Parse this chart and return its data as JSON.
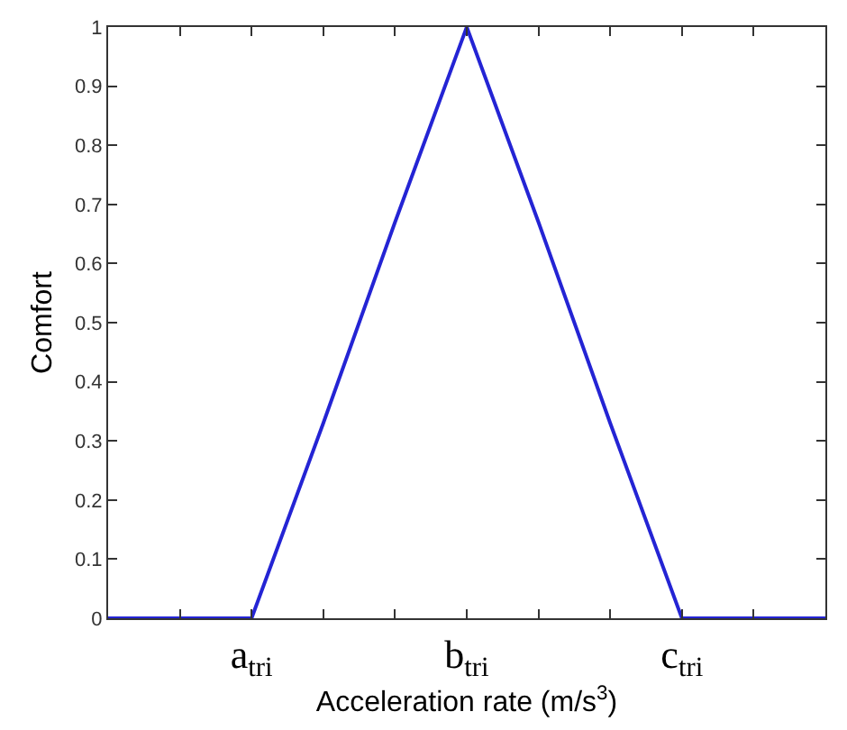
{
  "chart_data": {
    "type": "line",
    "xlabel": "Acceleration rate (m/s$^{3}$)",
    "ylabel": "Comfort",
    "categories": [
      null,
      null,
      "a$_{tri}$",
      null,
      null,
      "b$_{tri}$",
      null,
      null,
      "c$_{tri}$",
      null,
      null
    ],
    "series": [
      {
        "color": "#2424d4",
        "values": [
          0,
          0,
          0,
          0.33,
          0.67,
          1,
          0.67,
          0.33,
          0,
          0,
          0
        ]
      }
    ],
    "ylim": [
      0,
      1
    ],
    "yticks": [
      0,
      0.1,
      0.2,
      0.3,
      0.4,
      0.5,
      0.6,
      0.7,
      0.8,
      0.9,
      1
    ],
    "marker": "none",
    "line_style": "solid"
  }
}
